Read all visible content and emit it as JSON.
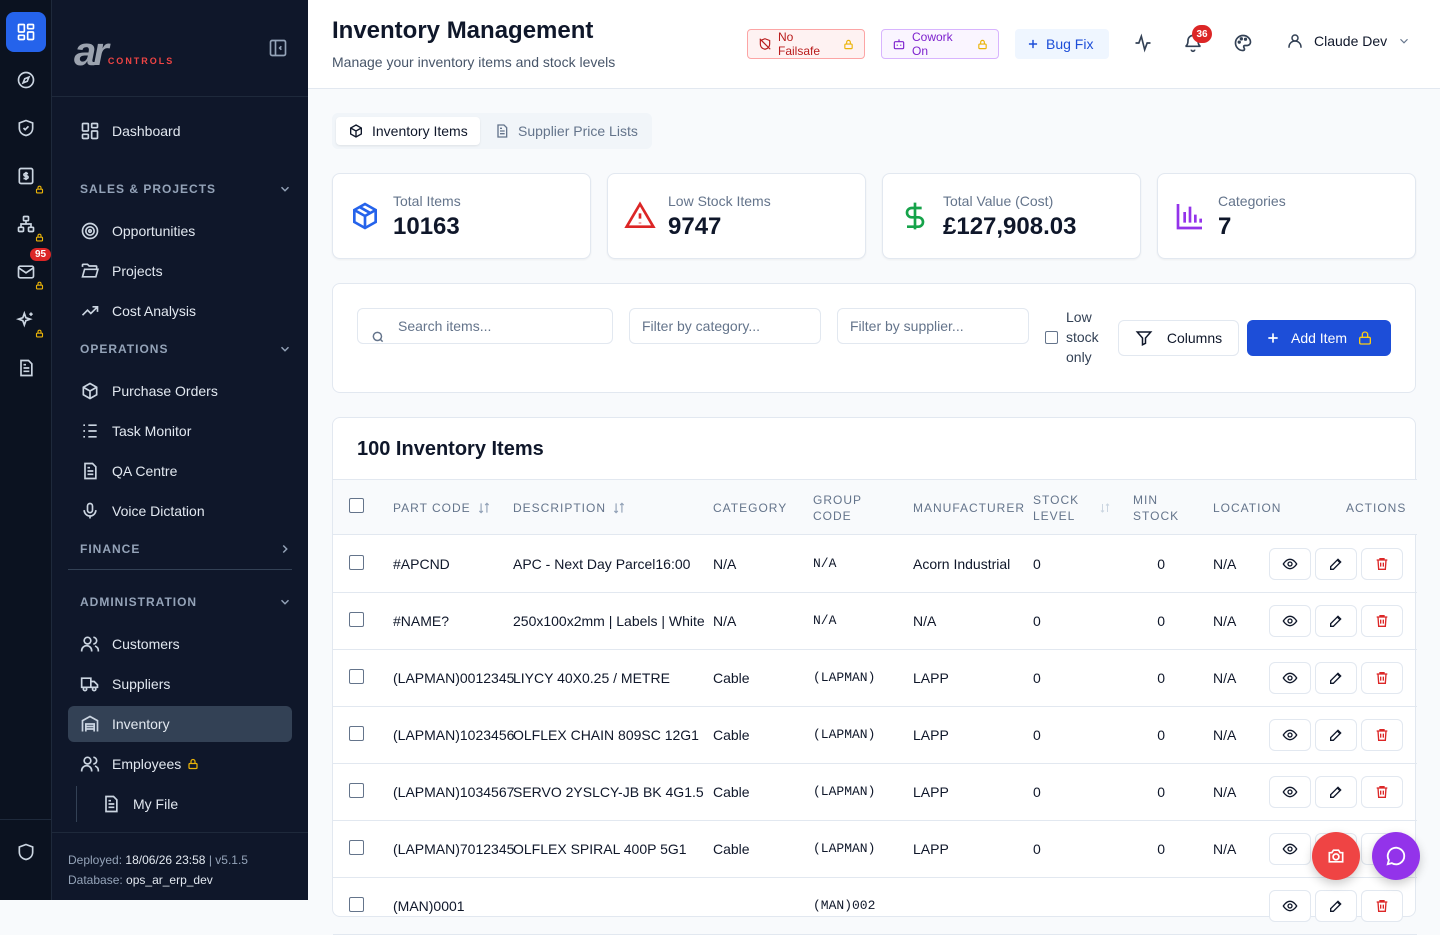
{
  "sidebar": {
    "logo_main": "ar",
    "logo_sub": "CONTROLS",
    "dashboard": "Dashboard",
    "sales_header": "SALES & PROJECTS",
    "opportunities": "Opportunities",
    "projects": "Projects",
    "cost_analysis": "Cost Analysis",
    "operations_header": "OPERATIONS",
    "purchase_orders": "Purchase Orders",
    "task_monitor": "Task Monitor",
    "qa_centre": "QA Centre",
    "voice_dictation": "Voice Dictation",
    "finance_header": "FINANCE",
    "admin_header": "ADMINISTRATION",
    "customers": "Customers",
    "suppliers": "Suppliers",
    "inventory": "Inventory",
    "employees": "Employees",
    "my_file": "My File",
    "deployed_label": "Deployed:",
    "deployed_value": "18/06/26 23:58",
    "version": "v5.1.5",
    "database_label": "Database:",
    "database_value": "ops_ar_erp_dev"
  },
  "rail": {
    "mail_badge": "95"
  },
  "header": {
    "title": "Inventory Management",
    "subtitle": "Manage your inventory items and stock levels",
    "no_failsafe": "No Failsafe",
    "cowork": "Cowork On",
    "bug_fix": "Bug Fix",
    "notifications": "36",
    "user_name": "Claude Dev"
  },
  "tabs": {
    "items": "Inventory Items",
    "price_lists": "Supplier Price Lists"
  },
  "stats": [
    {
      "label": "Total Items",
      "value": "10163"
    },
    {
      "label": "Low Stock Items",
      "value": "9747"
    },
    {
      "label": "Total Value (Cost)",
      "value": "£127,908.03"
    },
    {
      "label": "Categories",
      "value": "7"
    }
  ],
  "filters": {
    "search_placeholder": "Search items...",
    "category_placeholder": "Filter by category...",
    "supplier_placeholder": "Filter by supplier...",
    "low_stock_label": "Low stock only",
    "columns": "Columns",
    "add_item": "Add Item"
  },
  "table": {
    "title": "100 Inventory Items",
    "headers": {
      "part_code": "PART CODE",
      "description": "DESCRIPTION",
      "category": "CATEGORY",
      "group_code_1": "GROUP",
      "group_code_2": "CODE",
      "manufacturer": "MANUFACTURER",
      "stock_1": "STOCK",
      "stock_2": "LEVEL",
      "min_1": "MIN",
      "min_2": "STOCK",
      "location": "LOCATION",
      "actions": "ACTIONS"
    },
    "rows": [
      {
        "part": "#APCND",
        "desc": "APC - Next Day Parcel16:00",
        "cat": "N/A",
        "group": "N/A",
        "mfr": "Acorn Industrial",
        "stock": "0",
        "min": "0",
        "loc": "N/A"
      },
      {
        "part": "#NAME?",
        "desc": "250x100x2mm | Labels | White",
        "cat": "N/A",
        "group": "N/A",
        "mfr": "N/A",
        "stock": "0",
        "min": "0",
        "loc": "N/A"
      },
      {
        "part": "(LAPMAN)0012345",
        "desc": "LIYCY 40X0.25 / METRE",
        "cat": "Cable",
        "group": "(LAPMAN)",
        "mfr": "LAPP",
        "stock": "0",
        "min": "0",
        "loc": "N/A"
      },
      {
        "part": "(LAPMAN)1023456",
        "desc": "OLFLEX CHAIN 809SC 12G1",
        "cat": "Cable",
        "group": "(LAPMAN)",
        "mfr": "LAPP",
        "stock": "0",
        "min": "0",
        "loc": "N/A"
      },
      {
        "part": "(LAPMAN)1034567",
        "desc": "SERVO 2YSLCY-JB BK 4G1.5",
        "cat": "Cable",
        "group": "(LAPMAN)",
        "mfr": "LAPP",
        "stock": "0",
        "min": "0",
        "loc": "N/A"
      },
      {
        "part": "(LAPMAN)7012345",
        "desc": "OLFLEX SPIRAL 400P 5G1",
        "cat": "Cable",
        "group": "(LAPMAN)",
        "mfr": "LAPP",
        "stock": "0",
        "min": "0",
        "loc": "N/A"
      },
      {
        "part": "(MAN)0001",
        "desc": "",
        "cat": "",
        "group": "(MAN)002",
        "mfr": "",
        "stock": "",
        "min": "",
        "loc": ""
      }
    ]
  }
}
